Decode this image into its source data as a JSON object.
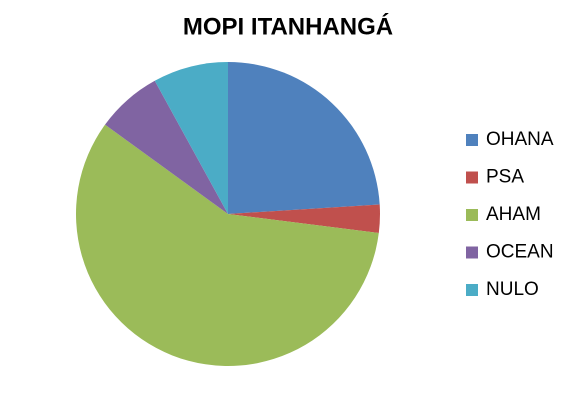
{
  "chart_data": {
    "type": "pie",
    "title": "MOPI ITANHANGÁ",
    "categories": [
      "OHANA",
      "PSA",
      "AHAM",
      "OCEAN",
      "NULO"
    ],
    "values": [
      24,
      3,
      58,
      7,
      8
    ],
    "colors": [
      "#4f81bd",
      "#c0504d",
      "#9bbb59",
      "#8064a2",
      "#4bacc6"
    ],
    "legend": "right"
  }
}
